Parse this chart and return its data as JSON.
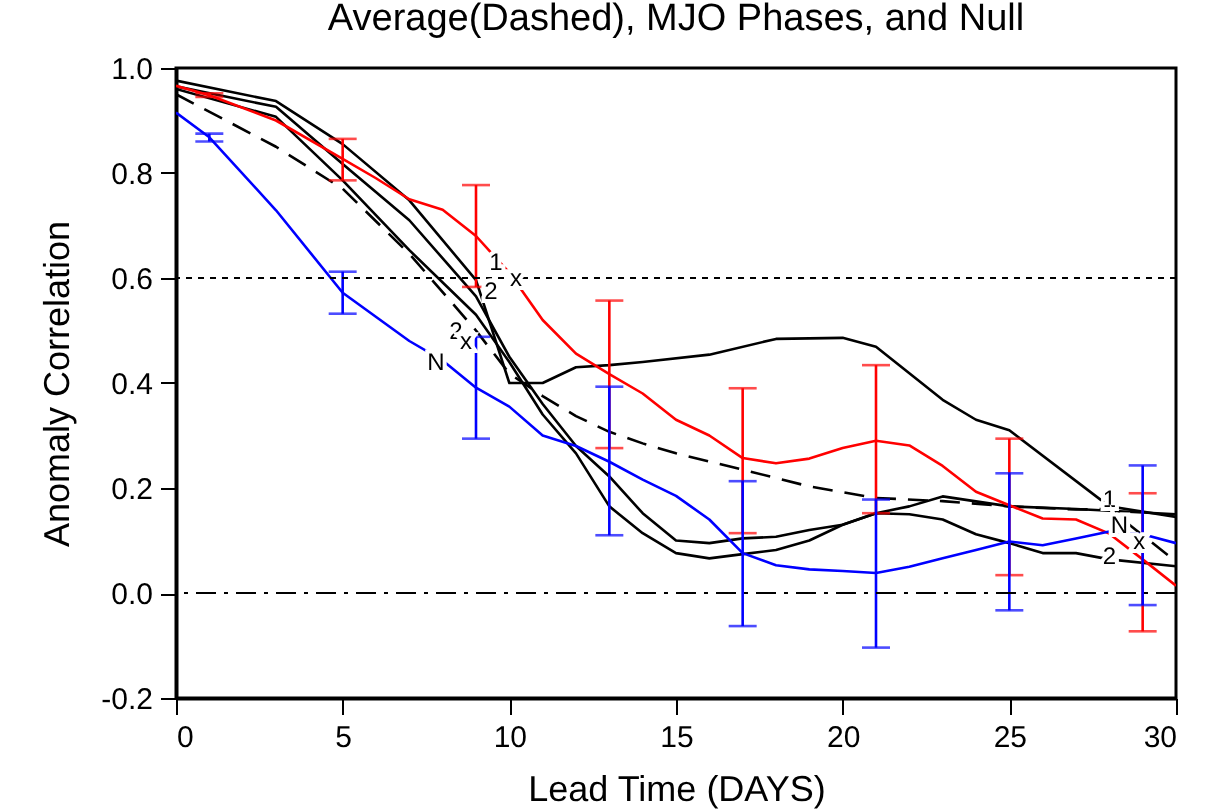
{
  "chart_data": {
    "type": "line",
    "title": "Average(Dashed), MJO Phases, and Null",
    "xlabel": "Lead Time (DAYS)",
    "ylabel": "Anomaly Correlation",
    "xlim": [
      0,
      30
    ],
    "xticks": [
      0,
      5,
      10,
      15,
      20,
      25,
      30
    ],
    "ylim": [
      -0.2,
      1.0
    ],
    "yticks": [
      -0.2,
      {
        "value": 0,
        "label": "0.0"
      },
      0.2,
      0.4,
      0.6,
      0.8,
      {
        "value": 1,
        "label": "1.0"
      }
    ],
    "grid": false,
    "marker": "none",
    "series": [
      {
        "color": "#000000",
        "line_style": "solid",
        "x": [
          0,
          3,
          5,
          7,
          9,
          10,
          11,
          12,
          13,
          14,
          16,
          18,
          20,
          21,
          23,
          24,
          25,
          28,
          30
        ],
        "values": [
          0.976,
          0.937,
          0.855,
          0.748,
          0.596,
          0.4,
          0.4,
          0.43,
          0.434,
          0.44,
          0.454,
          0.484,
          0.486,
          0.469,
          0.368,
          0.33,
          0.31,
          0.165,
          0.145
        ]
      },
      {
        "color": "#000000",
        "line_style": "solid",
        "x": [
          0,
          3,
          5,
          7,
          9,
          10,
          11,
          12,
          13,
          14,
          15,
          16,
          17,
          18,
          19,
          20,
          21,
          22,
          23,
          24,
          25,
          26,
          27,
          28,
          30
        ],
        "values": [
          0.965,
          0.926,
          0.817,
          0.71,
          0.565,
          0.45,
          0.36,
          0.28,
          0.222,
          0.152,
          0.1,
          0.095,
          0.104,
          0.107,
          0.12,
          0.13,
          0.152,
          0.15,
          0.14,
          0.112,
          0.095,
          0.076,
          0.076,
          0.064,
          0.051
        ]
      },
      {
        "color": "#000000",
        "line_style": "solid",
        "x": [
          0,
          3,
          5,
          7,
          9,
          10,
          11,
          12,
          13,
          14,
          15,
          16,
          17,
          18,
          19,
          20,
          21,
          22,
          23,
          25,
          27,
          30
        ],
        "values": [
          0.96,
          0.907,
          0.786,
          0.653,
          0.53,
          0.44,
          0.34,
          0.266,
          0.165,
          0.114,
          0.076,
          0.066,
          0.074,
          0.082,
          0.1,
          0.13,
          0.152,
          0.165,
          0.184,
          0.165,
          0.16,
          0.15
        ]
      },
      {
        "color": "#000000",
        "line_style": "dashed",
        "x": [
          0,
          3,
          5,
          7,
          9,
          10,
          11,
          12,
          13,
          14,
          15,
          17,
          19,
          21,
          23,
          25,
          27,
          28,
          29,
          30
        ],
        "values": [
          0.95,
          0.85,
          0.77,
          0.646,
          0.5,
          0.418,
          0.375,
          0.337,
          0.307,
          0.285,
          0.266,
          0.235,
          0.203,
          0.181,
          0.175,
          0.165,
          0.159,
          0.16,
          0.11,
          0.06
        ]
      },
      {
        "color": "#ff0000",
        "line_style": "solid",
        "x": [
          0,
          1,
          3,
          5,
          6,
          7,
          8,
          9,
          10,
          11,
          12,
          13,
          14,
          15,
          16,
          17,
          18,
          19,
          20,
          21,
          22,
          23,
          24,
          25,
          26,
          27,
          28,
          29,
          30
        ],
        "values": [
          0.966,
          0.948,
          0.9,
          0.827,
          0.79,
          0.75,
          0.73,
          0.68,
          0.61,
          0.52,
          0.456,
          0.417,
          0.38,
          0.33,
          0.3,
          0.257,
          0.247,
          0.256,
          0.276,
          0.29,
          0.281,
          0.242,
          0.193,
          0.167,
          0.142,
          0.14,
          0.113,
          0.064,
          0.014
        ],
        "errors": [
          null,
          [
            0.945,
            0.952
          ],
          null,
          [
            0.786,
            0.865
          ],
          null,
          null,
          null,
          [
            0.583,
            0.777
          ],
          null,
          null,
          null,
          [
            0.276,
            0.557
          ],
          null,
          null,
          null,
          [
            0.114,
            0.39
          ],
          null,
          null,
          null,
          [
            0.152,
            0.434
          ],
          null,
          null,
          null,
          [
            0.034,
            0.294
          ],
          null,
          null,
          null,
          [
            -0.073,
            0.19
          ],
          null
        ]
      },
      {
        "color": "#0000ff",
        "line_style": "solid",
        "x": [
          0,
          1,
          3,
          5,
          7,
          8,
          9,
          10,
          11,
          12,
          13,
          14,
          15,
          16,
          17,
          18,
          19,
          20,
          21,
          22,
          23,
          24,
          25,
          26,
          27,
          28,
          29,
          30
        ],
        "values": [
          0.915,
          0.868,
          0.729,
          0.572,
          0.48,
          0.443,
          0.391,
          0.355,
          0.3,
          0.28,
          0.25,
          0.216,
          0.185,
          0.14,
          0.076,
          0.053,
          0.045,
          0.042,
          0.038,
          0.05,
          0.066,
          0.082,
          0.098,
          0.091,
          0.104,
          0.117,
          0.112,
          0.095
        ],
        "errors": [
          null,
          [
            0.86,
            0.875
          ],
          null,
          [
            0.532,
            0.612
          ],
          null,
          null,
          [
            0.294,
            0.488
          ],
          null,
          null,
          null,
          [
            0.11,
            0.393
          ],
          null,
          null,
          null,
          [
            -0.063,
            0.213
          ],
          null,
          null,
          null,
          [
            -0.104,
            0.178
          ],
          null,
          null,
          null,
          [
            -0.033,
            0.228
          ],
          null,
          null,
          null,
          [
            -0.023,
            0.243
          ],
          null
        ]
      }
    ],
    "ref_lines": [
      {
        "axis": "y",
        "value": 0.6,
        "line_style": "dotted",
        "color": "#000000"
      },
      {
        "axis": "y",
        "value": 0,
        "line_style": "dashdot",
        "color": "#000000"
      }
    ],
    "annotations": [
      {
        "text": "1",
        "x": 9.6,
        "y": 0.63
      },
      {
        "text": "x",
        "x": 10.2,
        "y": 0.6
      },
      {
        "text": "2",
        "x": 9.45,
        "y": 0.575
      },
      {
        "text": "2",
        "x": 8.4,
        "y": 0.5
      },
      {
        "text": "x",
        "x": 8.7,
        "y": 0.48
      },
      {
        "text": "N",
        "x": 7.8,
        "y": 0.44
      },
      {
        "text": "1",
        "x": 28,
        "y": 0.18
      },
      {
        "text": "N",
        "x": 28.3,
        "y": 0.13
      },
      {
        "text": "x",
        "x": 28.9,
        "y": 0.1
      },
      {
        "text": "2",
        "x": 28,
        "y": 0.07
      }
    ]
  }
}
